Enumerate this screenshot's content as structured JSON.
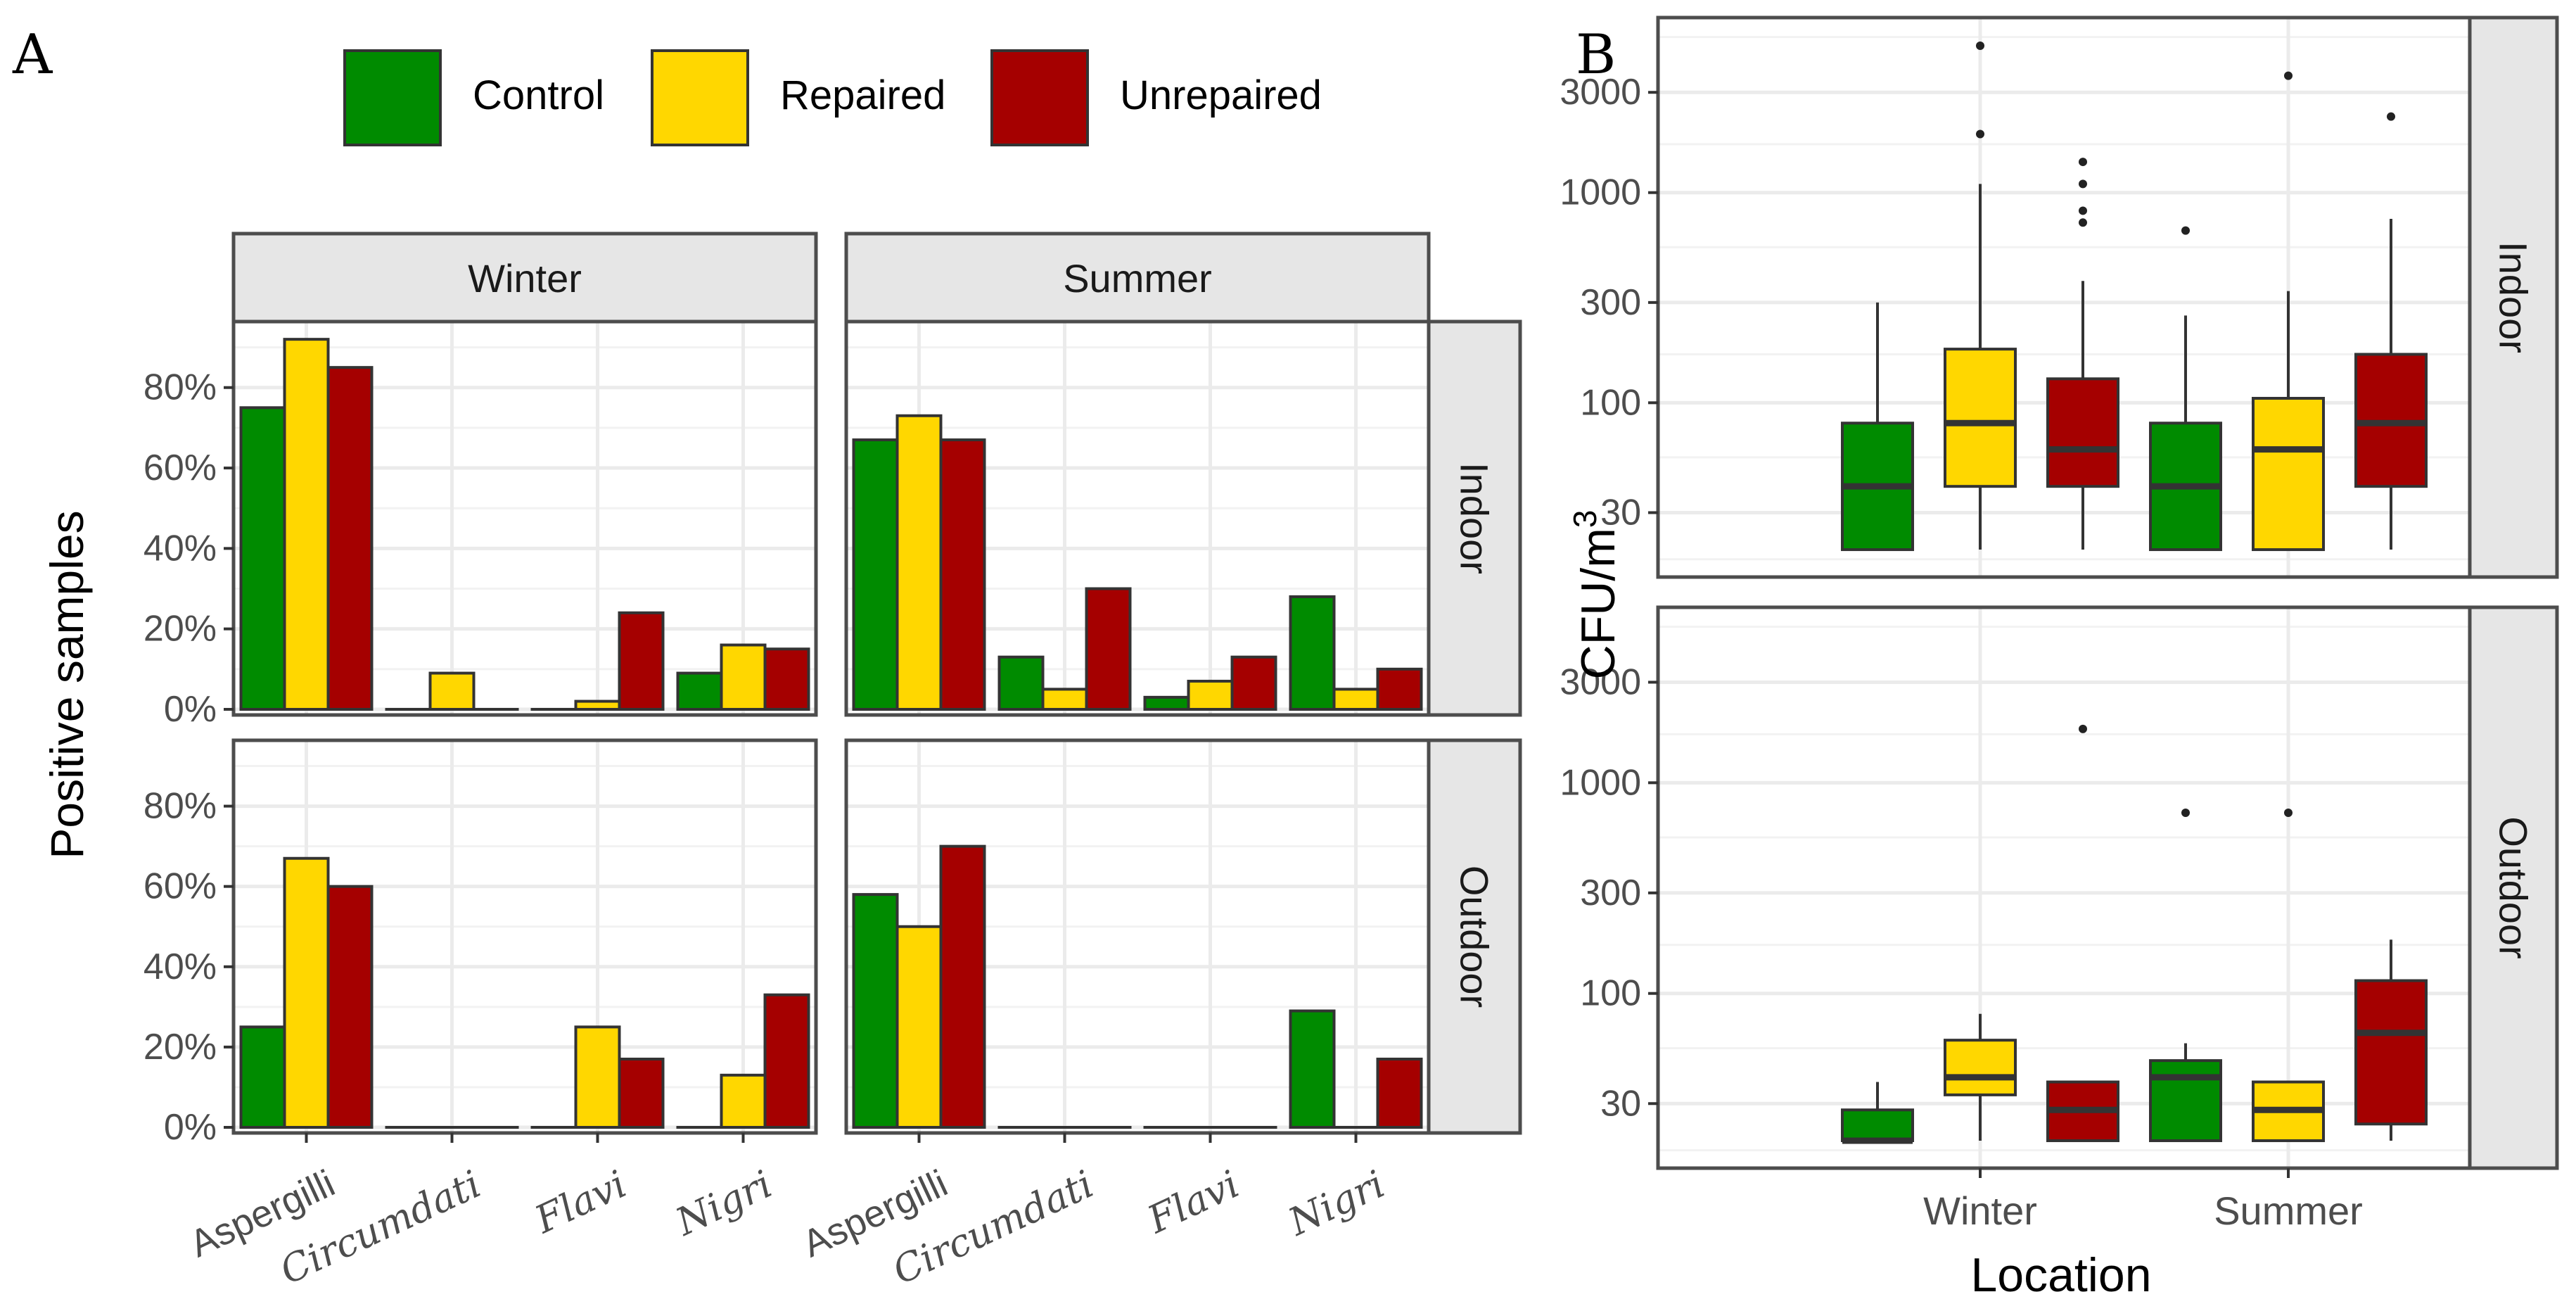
{
  "colors": {
    "Control": "#008B00",
    "Repaired": "#FFD700",
    "Unrepaired": "#A50000",
    "strip_fill": "#E6E6E6",
    "panel_border": "#4D4D4D",
    "grid": "#EBEBEB",
    "bar_outline": "#333333"
  },
  "chart_data": [
    {
      "panel_label": "A",
      "type": "bar",
      "title": "",
      "xlabel": "",
      "ylabel": "Positive samples",
      "ylim": [
        0,
        0.95
      ],
      "y_ticks": [
        0,
        0.2,
        0.4,
        0.6,
        0.8
      ],
      "y_tick_labels": [
        "0%",
        "20%",
        "40%",
        "60%",
        "80%"
      ],
      "categories": [
        "Aspergilli",
        "Circumdati",
        "Flavi",
        "Nigri"
      ],
      "category_italic": [
        false,
        true,
        true,
        true
      ],
      "legend": {
        "position": "top",
        "entries": [
          "Control",
          "Repaired",
          "Unrepaired"
        ]
      },
      "column_facets": [
        "Winter",
        "Summer"
      ],
      "row_facets": [
        "Indoor",
        "Outdoor"
      ],
      "facets": [
        {
          "col": "Winter",
          "row": "Indoor",
          "series": [
            {
              "name": "Control",
              "values": [
                0.75,
                0.0,
                0.0,
                0.09
              ]
            },
            {
              "name": "Repaired",
              "values": [
                0.92,
                0.09,
                0.02,
                0.16
              ]
            },
            {
              "name": "Unrepaired",
              "values": [
                0.85,
                0.0,
                0.24,
                0.15
              ]
            }
          ]
        },
        {
          "col": "Summer",
          "row": "Indoor",
          "series": [
            {
              "name": "Control",
              "values": [
                0.67,
                0.13,
                0.03,
                0.28
              ]
            },
            {
              "name": "Repaired",
              "values": [
                0.73,
                0.05,
                0.07,
                0.05
              ]
            },
            {
              "name": "Unrepaired",
              "values": [
                0.67,
                0.3,
                0.13,
                0.1
              ]
            }
          ]
        },
        {
          "col": "Winter",
          "row": "Outdoor",
          "series": [
            {
              "name": "Control",
              "values": [
                0.25,
                0.0,
                0.0,
                0.0
              ]
            },
            {
              "name": "Repaired",
              "values": [
                0.67,
                0.0,
                0.25,
                0.13
              ]
            },
            {
              "name": "Unrepaired",
              "values": [
                0.6,
                0.0,
                0.17,
                0.33
              ]
            }
          ]
        },
        {
          "col": "Summer",
          "row": "Outdoor",
          "series": [
            {
              "name": "Control",
              "values": [
                0.58,
                0.0,
                0.0,
                0.29
              ]
            },
            {
              "name": "Repaired",
              "values": [
                0.5,
                0.0,
                0.0,
                0.0
              ]
            },
            {
              "name": "Unrepaired",
              "values": [
                0.7,
                0.0,
                0.0,
                0.17
              ]
            }
          ]
        }
      ]
    },
    {
      "panel_label": "B",
      "type": "box",
      "title": "",
      "xlabel": "Location",
      "ylabel": "CFU/m",
      "ylabel_superscript": "3",
      "y_scale": "log10",
      "ylim": [
        16,
        6300
      ],
      "y_ticks": [
        30,
        100,
        300,
        1000,
        3000
      ],
      "y_tick_labels": [
        "30",
        "100",
        "300",
        "1000",
        "3000"
      ],
      "categories": [
        "Winter",
        "Summer"
      ],
      "row_facets": [
        "Indoor",
        "Outdoor"
      ],
      "facets": [
        {
          "row": "Indoor",
          "boxes": [
            {
              "season": "Winter",
              "group": "Control",
              "min": 20,
              "q1": 20,
              "median": 40,
              "q3": 80,
              "max": 300,
              "outliers": []
            },
            {
              "season": "Winter",
              "group": "Repaired",
              "min": 20,
              "q1": 40,
              "median": 80,
              "q3": 180,
              "max": 1100,
              "outliers": [
                1900,
                5000
              ]
            },
            {
              "season": "Winter",
              "group": "Unrepaired",
              "min": 20,
              "q1": 40,
              "median": 60,
              "q3": 130,
              "max": 380,
              "outliers": [
                720,
                820,
                1100,
                1400
              ]
            },
            {
              "season": "Summer",
              "group": "Control",
              "min": 20,
              "q1": 20,
              "median": 40,
              "q3": 80,
              "max": 260,
              "outliers": [
                660
              ]
            },
            {
              "season": "Summer",
              "group": "Repaired",
              "min": 20,
              "q1": 20,
              "median": 60,
              "q3": 105,
              "max": 340,
              "outliers": [
                3600
              ]
            },
            {
              "season": "Summer",
              "group": "Unrepaired",
              "min": 20,
              "q1": 40,
              "median": 80,
              "q3": 170,
              "max": 750,
              "outliers": [
                2300
              ]
            }
          ]
        },
        {
          "row": "Outdoor",
          "boxes": [
            {
              "season": "Winter",
              "group": "Control",
              "min": 20,
              "q1": 20,
              "median": 20,
              "q3": 28,
              "max": 38,
              "outliers": []
            },
            {
              "season": "Winter",
              "group": "Repaired",
              "min": 20,
              "q1": 33,
              "median": 40,
              "q3": 60,
              "max": 80,
              "outliers": []
            },
            {
              "season": "Winter",
              "group": "Unrepaired",
              "min": 20,
              "q1": 20,
              "median": 28,
              "q3": 38,
              "max": 38,
              "outliers": [
                1800
              ]
            },
            {
              "season": "Summer",
              "group": "Control",
              "min": 20,
              "q1": 20,
              "median": 40,
              "q3": 48,
              "max": 58,
              "outliers": [
                720
              ]
            },
            {
              "season": "Summer",
              "group": "Repaired",
              "min": 20,
              "q1": 20,
              "median": 28,
              "q3": 38,
              "max": 38,
              "outliers": [
                720
              ]
            },
            {
              "season": "Summer",
              "group": "Unrepaired",
              "min": 20,
              "q1": 24,
              "median": 65,
              "q3": 115,
              "max": 180,
              "outliers": []
            }
          ]
        }
      ]
    }
  ]
}
